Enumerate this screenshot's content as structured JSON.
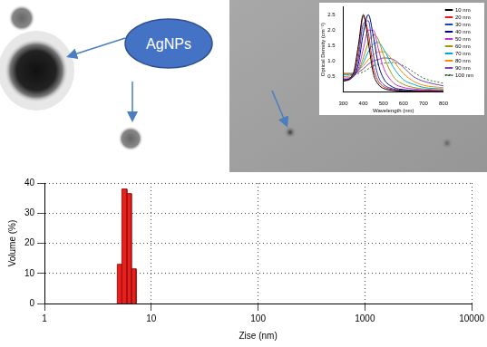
{
  "figure": {
    "label": "AgNPs"
  },
  "chart_data": [
    {
      "type": "histogram",
      "x_label": "Zise (nm)",
      "y_label": "Volume (%)",
      "bins": [
        4.8,
        5.3,
        5.9,
        6.5,
        7.2
      ],
      "values": [
        13,
        38,
        36.5,
        11.5
      ],
      "color": "#e8201c",
      "log": "x",
      "xlim": [
        1,
        10000
      ],
      "xticks": [
        1,
        10,
        100,
        1000,
        10000
      ],
      "ylim": [
        0,
        40
      ],
      "yticks": [
        0,
        10,
        20,
        30,
        40
      ],
      "grid": true
    },
    {
      "type": "line",
      "x_label": "Wavelength (nm)",
      "y_label": "Optical Density (cm⁻¹)",
      "x": [
        300,
        350,
        375,
        400,
        425,
        450,
        475,
        500,
        550,
        600,
        650,
        700,
        800
      ],
      "series": [
        {
          "name": "10 nm",
          "color": "#000000",
          "values": [
            0.35,
            0.6,
            1.5,
            2.5,
            1.6,
            0.6,
            0.25,
            0.12,
            0.05,
            0.03,
            0.02,
            0.02,
            0.01
          ]
        },
        {
          "name": "20 nm",
          "color": "#e41a1c",
          "values": [
            0.35,
            0.55,
            1.3,
            2.45,
            1.9,
            0.8,
            0.35,
            0.18,
            0.07,
            0.04,
            0.03,
            0.02,
            0.01
          ]
        },
        {
          "name": "30 nm",
          "color": "#1f3fbf",
          "values": [
            0.35,
            0.5,
            1.1,
            2.2,
            2.3,
            1.2,
            0.5,
            0.25,
            0.1,
            0.05,
            0.04,
            0.03,
            0.02
          ]
        },
        {
          "name": "40 nm",
          "color": "#000080",
          "values": [
            0.4,
            0.5,
            0.9,
            1.9,
            2.5,
            1.8,
            0.9,
            0.45,
            0.15,
            0.08,
            0.05,
            0.04,
            0.03
          ]
        },
        {
          "name": "50 nm",
          "color": "#cc33cc",
          "values": [
            0.45,
            0.5,
            0.75,
            1.4,
            2.0,
            2.0,
            1.4,
            0.8,
            0.3,
            0.15,
            0.1,
            0.07,
            0.05
          ]
        },
        {
          "name": "60 nm",
          "color": "#999900",
          "values": [
            0.5,
            0.55,
            0.7,
            1.1,
            1.6,
            1.85,
            1.7,
            1.2,
            0.5,
            0.25,
            0.15,
            0.1,
            0.07
          ]
        },
        {
          "name": "70 nm",
          "color": "#00aacc",
          "values": [
            0.55,
            0.6,
            0.7,
            0.95,
            1.3,
            1.55,
            1.6,
            1.4,
            0.8,
            0.4,
            0.25,
            0.15,
            0.1
          ]
        },
        {
          "name": "80 nm",
          "color": "#ff8800",
          "values": [
            0.6,
            0.6,
            0.7,
            0.85,
            1.05,
            1.2,
            1.3,
            1.3,
            1.0,
            0.6,
            0.35,
            0.22,
            0.14
          ]
        },
        {
          "name": "90 nm",
          "color": "#7744aa",
          "values": [
            0.6,
            0.6,
            0.65,
            0.75,
            0.9,
            1.0,
            1.05,
            1.1,
            1.05,
            0.8,
            0.5,
            0.35,
            0.2
          ]
        },
        {
          "name": "100 nm",
          "color": "#336633",
          "line_style": "dotted",
          "values": [
            0.6,
            0.55,
            0.6,
            0.65,
            0.75,
            0.85,
            0.9,
            0.93,
            0.95,
            0.85,
            0.65,
            0.45,
            0.28
          ]
        }
      ],
      "legend": "right",
      "xlim": [
        300,
        800
      ],
      "xticks": [
        300,
        400,
        500,
        600,
        700,
        800
      ],
      "ylim": [
        0,
        2.75
      ],
      "yticks": [
        0.5,
        {
          "value": 1,
          "label": "1.0"
        },
        1.5,
        {
          "value": 2,
          "label": "2.0"
        },
        2.5
      ]
    }
  ]
}
